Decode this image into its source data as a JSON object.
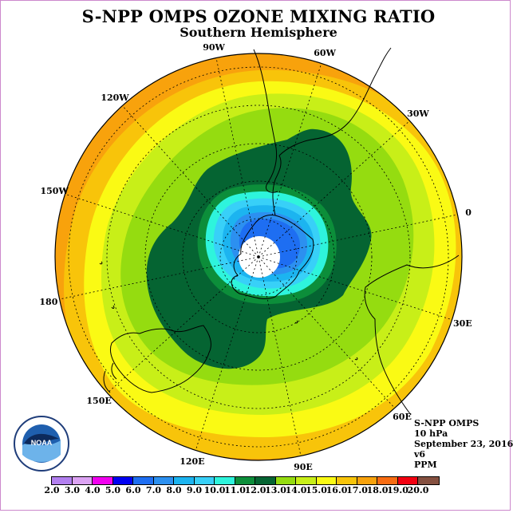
{
  "title": "S-NPP OMPS OZONE MIXING RATIO",
  "subtitle": "Southern Hemisphere",
  "info": {
    "instrument": "S-NPP OMPS",
    "level": "10 hPa",
    "date": "September 23, 2016",
    "version": "v6",
    "units": "PPM"
  },
  "logo": {
    "text": "NOAA",
    "ring_text": "NATIONAL OCEANIC AND ATMOSPHERIC ADMINISTRATION - U.S. DEPARTMENT OF COMMERCE",
    "icon": "noaa-logo-icon"
  },
  "longitude_labels": [
    {
      "text": "0",
      "lon": 0
    },
    {
      "text": "30E",
      "lon": 30
    },
    {
      "text": "60E",
      "lon": 60
    },
    {
      "text": "90E",
      "lon": 90
    },
    {
      "text": "120E",
      "lon": 120
    },
    {
      "text": "150E",
      "lon": 150
    },
    {
      "text": "180",
      "lon": 180
    },
    {
      "text": "150W",
      "lon": -150
    },
    {
      "text": "120W",
      "lon": -120
    },
    {
      "text": "90W",
      "lon": -90
    },
    {
      "text": "60W",
      "lon": -60
    },
    {
      "text": "30W",
      "lon": -30
    }
  ],
  "colorbar": {
    "ticks": [
      "2.0",
      "3.0",
      "4.0",
      "5.0",
      "6.0",
      "7.0",
      "8.0",
      "9.0",
      "10.0",
      "11.0",
      "12.0",
      "13.0",
      "14.0",
      "15.0",
      "16.0",
      "17.0",
      "18.0",
      "19.0",
      "20.0"
    ],
    "colors": [
      "#b27fef",
      "#dca3f3",
      "#f200f0",
      "#0000f2",
      "#1e6ef2",
      "#2c90f0",
      "#1cb4f0",
      "#38d0f8",
      "#2ef4dc",
      "#0c8e3a",
      "#056432",
      "#95dc10",
      "#c8ef18",
      "#fafa14",
      "#f8c40a",
      "#f8a20c",
      "#f86c12",
      "#f20010",
      "#855040"
    ]
  },
  "map_colors": {
    "pole_hole": "#ffffff",
    "coastline": "#000000",
    "gridline": "#000000"
  }
}
